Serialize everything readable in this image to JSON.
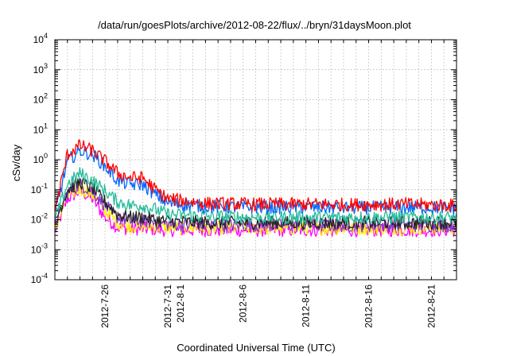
{
  "chart_data": {
    "type": "line",
    "title": "/data/run/goesPlots/archive/2012-08-22/flux/../bryn/31daysMoon.plot",
    "xlabel": "Coordinated Universal Time (UTC)",
    "ylabel": "cSv/day",
    "yscale": "log",
    "ylim": [
      0.0001,
      10000
    ],
    "xlim": [
      "2012-07-22",
      "2012-08-23"
    ],
    "y_ticks": [
      {
        "base": "10",
        "exp": "-4"
      },
      {
        "base": "10",
        "exp": "-3"
      },
      {
        "base": "10",
        "exp": "-2"
      },
      {
        "base": "10",
        "exp": "-1"
      },
      {
        "base": "10",
        "exp": "0"
      },
      {
        "base": "10",
        "exp": "1"
      },
      {
        "base": "10",
        "exp": "2"
      },
      {
        "base": "10",
        "exp": "3"
      },
      {
        "base": "10",
        "exp": "4"
      }
    ],
    "x_tick_labels": [
      {
        "label": "2012-7-26",
        "date": "2012-07-26"
      },
      {
        "label": "2012-7-31",
        "date": "2012-07-31"
      },
      {
        "label": "2012-8-1",
        "date": "2012-08-01"
      },
      {
        "label": "2012-8-6",
        "date": "2012-08-06"
      },
      {
        "label": "2012-8-11",
        "date": "2012-08-11"
      },
      {
        "label": "2012-8-16",
        "date": "2012-08-16"
      },
      {
        "label": "2012-8-21",
        "date": "2012-08-21"
      }
    ],
    "grid": true,
    "series": [
      {
        "color": "#ff0000",
        "x": [
          "2012-07-22",
          "2012-07-23",
          "2012-07-24",
          "2012-07-25",
          "2012-07-26",
          "2012-07-27",
          "2012-07-28",
          "2012-07-29",
          "2012-07-30",
          "2012-07-31",
          "2012-08-03",
          "2012-08-07",
          "2012-08-11",
          "2012-08-15",
          "2012-08-19",
          "2012-08-23"
        ],
        "y": [
          0.02,
          1.5,
          3.0,
          2.0,
          0.9,
          0.35,
          0.25,
          0.25,
          0.1,
          0.05,
          0.035,
          0.033,
          0.033,
          0.032,
          0.033,
          0.03
        ]
      },
      {
        "color": "#0066ff",
        "x": [
          "2012-07-22",
          "2012-07-23",
          "2012-07-24",
          "2012-07-25",
          "2012-07-26",
          "2012-07-27",
          "2012-07-28",
          "2012-07-29",
          "2012-07-30",
          "2012-07-31",
          "2012-08-03",
          "2012-08-07",
          "2012-08-11",
          "2012-08-15",
          "2012-08-19",
          "2012-08-23"
        ],
        "y": [
          0.015,
          0.9,
          2.0,
          1.5,
          0.6,
          0.2,
          0.15,
          0.15,
          0.07,
          0.035,
          0.028,
          0.026,
          0.026,
          0.025,
          0.026,
          0.025
        ]
      },
      {
        "color": "#22bb99",
        "x": [
          "2012-07-22",
          "2012-07-23",
          "2012-07-24",
          "2012-07-25",
          "2012-07-26",
          "2012-07-27",
          "2012-07-28",
          "2012-07-29",
          "2012-07-30",
          "2012-07-31",
          "2012-08-03",
          "2012-08-07",
          "2012-08-11",
          "2012-08-15",
          "2012-08-19",
          "2012-08-23"
        ],
        "y": [
          0.01,
          0.15,
          0.35,
          0.2,
          0.09,
          0.04,
          0.03,
          0.03,
          0.022,
          0.015,
          0.013,
          0.012,
          0.012,
          0.012,
          0.012,
          0.012
        ]
      },
      {
        "color": "#222222",
        "x": [
          "2012-07-22",
          "2012-07-23",
          "2012-07-24",
          "2012-07-25",
          "2012-07-26",
          "2012-07-27",
          "2012-07-28",
          "2012-07-29",
          "2012-07-30",
          "2012-07-31",
          "2012-08-03",
          "2012-08-07",
          "2012-08-11",
          "2012-08-15",
          "2012-08-19",
          "2012-08-23"
        ],
        "y": [
          0.008,
          0.1,
          0.18,
          0.11,
          0.04,
          0.015,
          0.012,
          0.012,
          0.01,
          0.009,
          0.008,
          0.008,
          0.008,
          0.008,
          0.008,
          0.008
        ]
      },
      {
        "color": "#8833cc",
        "x": [
          "2012-07-22",
          "2012-07-23",
          "2012-07-24",
          "2012-07-25",
          "2012-07-26",
          "2012-07-27",
          "2012-07-28",
          "2012-07-29",
          "2012-07-30",
          "2012-07-31",
          "2012-08-03",
          "2012-08-07",
          "2012-08-11",
          "2012-08-15",
          "2012-08-19",
          "2012-08-23"
        ],
        "y": [
          0.007,
          0.08,
          0.15,
          0.09,
          0.03,
          0.012,
          0.009,
          0.009,
          0.008,
          0.007,
          0.0065,
          0.0065,
          0.0065,
          0.0065,
          0.0065,
          0.0065
        ]
      },
      {
        "color": "#ffee00",
        "x": [
          "2012-07-22",
          "2012-07-23",
          "2012-07-24",
          "2012-07-25",
          "2012-07-26",
          "2012-07-27",
          "2012-07-28",
          "2012-07-29",
          "2012-07-30",
          "2012-07-31",
          "2012-08-03",
          "2012-08-07",
          "2012-08-11",
          "2012-08-15",
          "2012-08-19",
          "2012-08-23"
        ],
        "y": [
          0.005,
          0.06,
          0.11,
          0.07,
          0.02,
          0.008,
          0.006,
          0.006,
          0.006,
          0.0055,
          0.0052,
          0.0052,
          0.0052,
          0.0052,
          0.0052,
          0.0052
        ]
      },
      {
        "color": "#ff00ff",
        "x": [
          "2012-07-22",
          "2012-07-23",
          "2012-07-24",
          "2012-07-25",
          "2012-07-26",
          "2012-07-27",
          "2012-07-28",
          "2012-07-29",
          "2012-07-30",
          "2012-07-31",
          "2012-08-03",
          "2012-08-07",
          "2012-08-11",
          "2012-08-15",
          "2012-08-19",
          "2012-08-23"
        ],
        "y": [
          0.004,
          0.05,
          0.09,
          0.05,
          0.012,
          0.0055,
          0.005,
          0.005,
          0.0048,
          0.0045,
          0.0045,
          0.0045,
          0.0045,
          0.0045,
          0.0045,
          0.0045
        ]
      }
    ]
  }
}
